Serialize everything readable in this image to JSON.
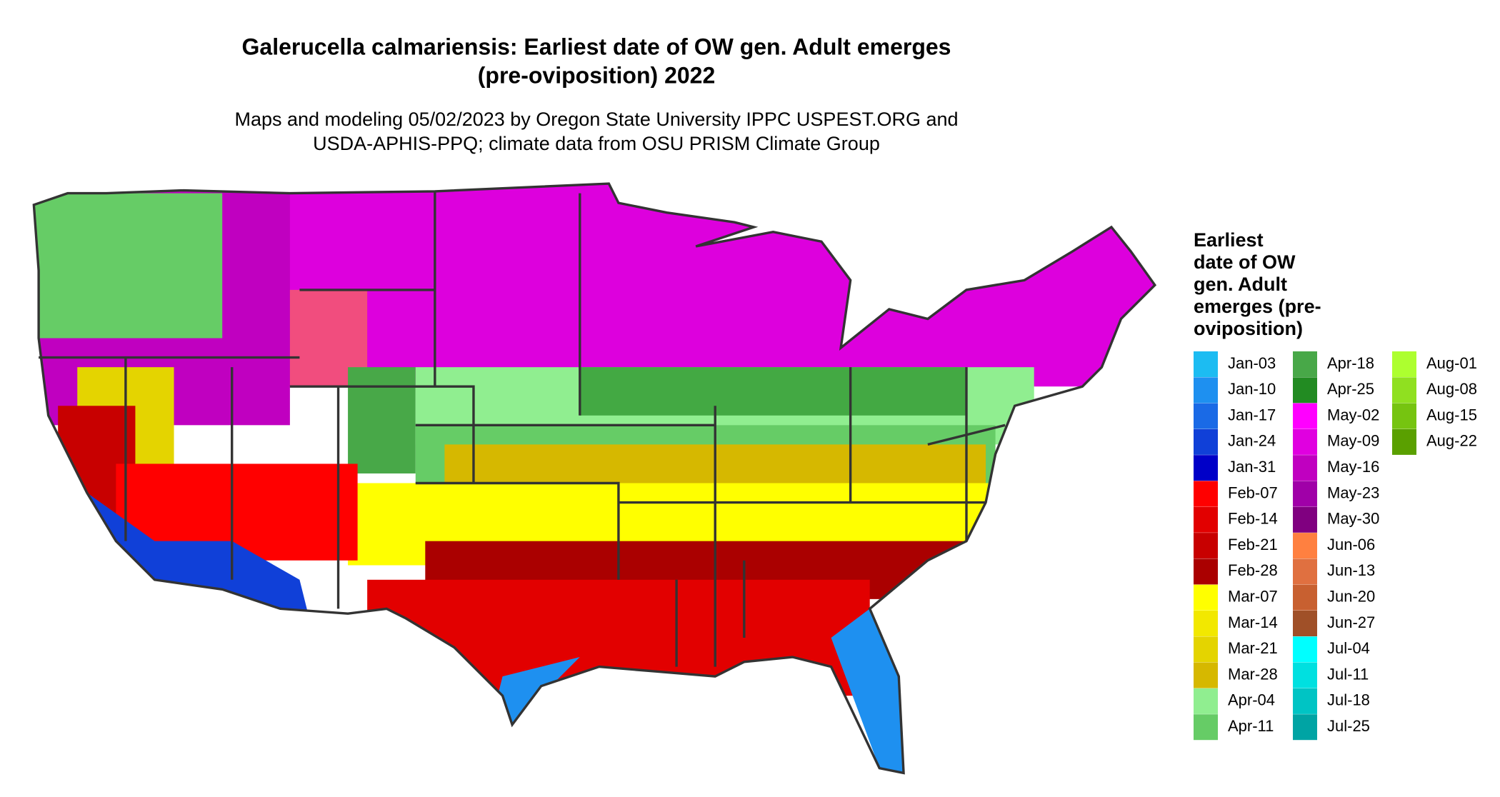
{
  "title": [
    "Galerucella calmariensis: Earliest date of OW gen. Adult emerges",
    "(pre-oviposition) 2022"
  ],
  "subtitle": [
    "Maps and modeling 05/02/2023 by Oregon State University IPPC USPEST.ORG and",
    "USDA-APHIS-PPQ; climate data from OSU PRISM Climate Group"
  ],
  "legend": {
    "title": [
      "Earliest",
      "date of OW",
      "gen. Adult",
      "emerges (pre-",
      "oviposition)"
    ],
    "entries": [
      {
        "label": "Jan-03",
        "color": "#1cbcf2"
      },
      {
        "label": "Jan-10",
        "color": "#1e90f0"
      },
      {
        "label": "Jan-17",
        "color": "#1a6ae6"
      },
      {
        "label": "Jan-24",
        "color": "#1040d8"
      },
      {
        "label": "Jan-31",
        "color": "#0000c8"
      },
      {
        "label": "Feb-07",
        "color": "#ff0000"
      },
      {
        "label": "Feb-14",
        "color": "#e20000"
      },
      {
        "label": "Feb-21",
        "color": "#c80000"
      },
      {
        "label": "Feb-28",
        "color": "#aa0000"
      },
      {
        "label": "Mar-07",
        "color": "#ffff00"
      },
      {
        "label": "Mar-14",
        "color": "#f2e800"
      },
      {
        "label": "Mar-21",
        "color": "#e4d400"
      },
      {
        "label": "Mar-28",
        "color": "#d6b800"
      },
      {
        "label": "Apr-04",
        "color": "#90ee90"
      },
      {
        "label": "Apr-11",
        "color": "#66cc66"
      },
      {
        "label": "Apr-18",
        "color": "#48a848"
      },
      {
        "label": "Apr-25",
        "color": "#228b22"
      },
      {
        "label": "May-02",
        "color": "#ff00ff"
      },
      {
        "label": "May-09",
        "color": "#e000e0"
      },
      {
        "label": "May-16",
        "color": "#c000c0"
      },
      {
        "label": "May-23",
        "color": "#a000a8"
      },
      {
        "label": "May-30",
        "color": "#800080"
      },
      {
        "label": "Jun-06",
        "color": "#ff8040"
      },
      {
        "label": "Jun-13",
        "color": "#e07040"
      },
      {
        "label": "Jun-20",
        "color": "#c86030"
      },
      {
        "label": "Jun-27",
        "color": "#a05028"
      },
      {
        "label": "Jul-04",
        "color": "#00ffff"
      },
      {
        "label": "Jul-11",
        "color": "#00e0e0"
      },
      {
        "label": "Jul-18",
        "color": "#00c4c4"
      },
      {
        "label": "Jul-25",
        "color": "#00a4a4"
      },
      {
        "label": "Aug-01",
        "color": "#adff2f"
      },
      {
        "label": "Aug-08",
        "color": "#90e020"
      },
      {
        "label": "Aug-15",
        "color": "#76c410"
      },
      {
        "label": "Aug-22",
        "color": "#5aa000"
      }
    ]
  }
}
